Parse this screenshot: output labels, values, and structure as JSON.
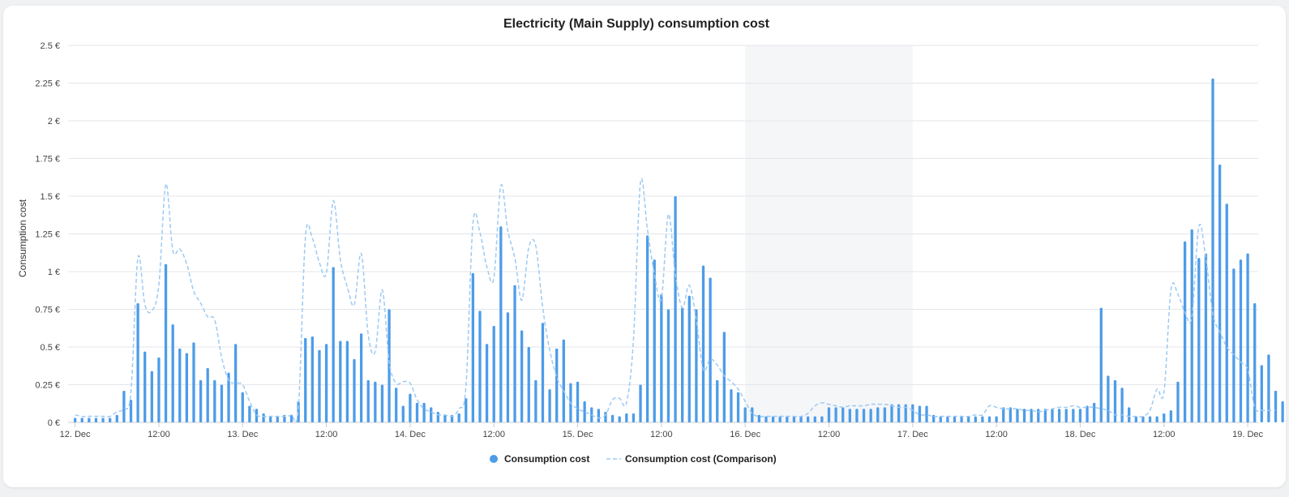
{
  "chart_data": {
    "type": "bar",
    "title": "Electricity (Main Supply) consumption cost",
    "ylabel": "Consumption cost",
    "xlabel": "",
    "ylim": [
      0,
      2.5
    ],
    "y_ticks": [
      {
        "value": 0,
        "label": "0 €"
      },
      {
        "value": 0.25,
        "label": "0.25 €"
      },
      {
        "value": 0.5,
        "label": "0.5 €"
      },
      {
        "value": 0.75,
        "label": "0.75 €"
      },
      {
        "value": 1,
        "label": "1 €"
      },
      {
        "value": 1.25,
        "label": "1.25 €"
      },
      {
        "value": 1.5,
        "label": "1.5 €"
      },
      {
        "value": 1.75,
        "label": "1.75 €"
      },
      {
        "value": 2,
        "label": "2 €"
      },
      {
        "value": 2.25,
        "label": "2.25 €"
      },
      {
        "value": 2.5,
        "label": "2.5 €"
      }
    ],
    "x_ticks": [
      {
        "hour": 0,
        "label": "12. Dec"
      },
      {
        "hour": 12,
        "label": "12:00"
      },
      {
        "hour": 24,
        "label": "13. Dec"
      },
      {
        "hour": 36,
        "label": "12:00"
      },
      {
        "hour": 48,
        "label": "14. Dec"
      },
      {
        "hour": 60,
        "label": "12:00"
      },
      {
        "hour": 72,
        "label": "15. Dec"
      },
      {
        "hour": 84,
        "label": "12:00"
      },
      {
        "hour": 96,
        "label": "16. Dec"
      },
      {
        "hour": 108,
        "label": "12:00"
      },
      {
        "hour": 120,
        "label": "17. Dec"
      },
      {
        "hour": 132,
        "label": "12:00"
      },
      {
        "hour": 144,
        "label": "18. Dec"
      },
      {
        "hour": 156,
        "label": "12:00"
      },
      {
        "hour": 168,
        "label": "19. Dec"
      }
    ],
    "x_range_hours": [
      -1,
      169.5
    ],
    "weekend_band_hours": [
      96,
      120
    ],
    "colors": {
      "bars": "#4d9ce8",
      "comparison": "#9ccaf3",
      "grid": "#e4e6ea",
      "band": "#f5f6f8"
    },
    "series": [
      {
        "name": "Consumption cost",
        "style": "bar",
        "values": [
          0.03,
          0.03,
          0.03,
          0.03,
          0.03,
          0.03,
          0.05,
          0.21,
          0.15,
          0.79,
          0.47,
          0.34,
          0.43,
          1.05,
          0.65,
          0.49,
          0.46,
          0.53,
          0.28,
          0.36,
          0.28,
          0.25,
          0.33,
          0.52,
          0.2,
          0.11,
          0.09,
          0.06,
          0.04,
          0.04,
          0.05,
          0.05,
          0.14,
          0.56,
          0.57,
          0.48,
          0.52,
          1.03,
          0.54,
          0.54,
          0.42,
          0.59,
          0.28,
          0.27,
          0.25,
          0.75,
          0.23,
          0.11,
          0.19,
          0.13,
          0.13,
          0.1,
          0.07,
          0.05,
          0.05,
          0.06,
          0.16,
          0.99,
          0.74,
          0.52,
          0.64,
          1.3,
          0.73,
          0.91,
          0.61,
          0.5,
          0.28,
          0.66,
          0.22,
          0.49,
          0.55,
          0.26,
          0.27,
          0.14,
          0.1,
          0.09,
          0.07,
          0.05,
          0.04,
          0.06,
          0.06,
          0.25,
          1.24,
          1.08,
          0.85,
          0.75,
          1.5,
          0.76,
          0.84,
          0.75,
          1.04,
          0.96,
          0.28,
          0.6,
          0.22,
          0.2,
          0.1,
          0.1,
          0.05,
          0.04,
          0.04,
          0.04,
          0.04,
          0.04,
          0.04,
          0.04,
          0.04,
          0.04,
          0.1,
          0.1,
          0.1,
          0.09,
          0.09,
          0.09,
          0.09,
          0.1,
          0.1,
          0.12,
          0.12,
          0.12,
          0.12,
          0.11,
          0.11,
          0.05,
          0.04,
          0.04,
          0.04,
          0.04,
          0.04,
          0.04,
          0.04,
          0.04,
          0.04,
          0.1,
          0.1,
          0.09,
          0.09,
          0.09,
          0.09,
          0.09,
          0.09,
          0.09,
          0.09,
          0.09,
          0.09,
          0.11,
          0.13,
          0.76,
          0.31,
          0.28,
          0.23,
          0.1,
          0.04,
          0.04,
          0.04,
          0.04,
          0.06,
          0.08,
          0.27,
          1.2,
          1.28,
          1.09,
          1.12,
          2.28,
          1.71,
          1.45,
          1.02,
          1.08,
          1.12,
          0.79,
          0.38,
          0.45,
          0.21,
          0.14,
          0.03
        ]
      },
      {
        "name": "Consumption cost (Comparison)",
        "style": "dashed-line",
        "values": [
          0.05,
          0.04,
          0.04,
          0.04,
          0.04,
          0.04,
          0.07,
          0.09,
          0.2,
          1.09,
          0.78,
          0.74,
          0.91,
          1.58,
          1.14,
          1.15,
          1.05,
          0.87,
          0.79,
          0.7,
          0.68,
          0.43,
          0.28,
          0.26,
          0.25,
          0.14,
          0.05,
          0.04,
          0.04,
          0.04,
          0.04,
          0.05,
          0.1,
          1.23,
          1.22,
          1.06,
          0.99,
          1.47,
          1.08,
          0.9,
          0.78,
          1.12,
          0.58,
          0.47,
          0.88,
          0.4,
          0.26,
          0.27,
          0.26,
          0.15,
          0.09,
          0.07,
          0.05,
          0.05,
          0.04,
          0.09,
          0.24,
          1.32,
          1.26,
          1.03,
          0.96,
          1.57,
          1.27,
          1.09,
          0.81,
          1.16,
          1.17,
          0.76,
          0.48,
          0.3,
          0.21,
          0.13,
          0.09,
          0.07,
          0.05,
          0.03,
          0.05,
          0.15,
          0.16,
          0.13,
          0.55,
          1.59,
          1.28,
          0.98,
          0.82,
          1.38,
          0.98,
          0.76,
          0.91,
          0.68,
          0.35,
          0.42,
          0.38,
          0.31,
          0.27,
          0.22,
          0.14,
          0.06,
          0.04,
          0.04,
          0.04,
          0.04,
          0.04,
          0.04,
          0.04,
          0.06,
          0.11,
          0.13,
          0.12,
          0.11,
          0.1,
          0.11,
          0.11,
          0.11,
          0.12,
          0.12,
          0.12,
          0.11,
          0.1,
          0.1,
          0.08,
          0.05,
          0.05,
          0.04,
          0.04,
          0.04,
          0.04,
          0.04,
          0.04,
          0.05,
          0.05,
          0.11,
          0.1,
          0.09,
          0.09,
          0.09,
          0.08,
          0.08,
          0.07,
          0.08,
          0.09,
          0.1,
          0.1,
          0.11,
          0.1,
          0.1,
          0.1,
          0.09,
          0.08,
          0.05,
          0.05,
          0.04,
          0.04,
          0.04,
          0.08,
          0.22,
          0.2,
          0.88,
          0.85,
          0.73,
          0.7,
          1.3,
          1.09,
          0.72,
          0.6,
          0.5,
          0.45,
          0.4,
          0.35,
          0.1,
          0.08,
          0.08,
          0.08
        ]
      }
    ],
    "legend": {
      "placement": "bottom-center"
    }
  }
}
